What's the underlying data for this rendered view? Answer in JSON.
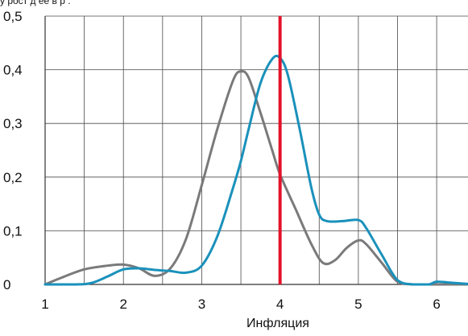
{
  "page": {
    "top_caption_fragment": "у рост д    ее в р      ."
  },
  "chart_data": {
    "type": "line",
    "title": "",
    "xlabel": "Инфляция",
    "ylabel": "",
    "xlim": [
      1,
      6.4
    ],
    "ylim": [
      0,
      0.5
    ],
    "x_ticks": [
      1,
      2,
      3,
      4,
      5,
      6
    ],
    "x_tick_labels": [
      "1",
      "2",
      "3",
      "4",
      "5",
      "6"
    ],
    "y_ticks": [
      0,
      0.1,
      0.2,
      0.3,
      0.4,
      0.5
    ],
    "y_tick_labels": [
      "0",
      "0,1",
      "0,2",
      "0,3",
      "0,4",
      "0,5"
    ],
    "grid": true,
    "legend": "none",
    "reference_line": {
      "x": 4.0,
      "color": "#e3122c"
    },
    "series": [
      {
        "color": "#7a7a7c",
        "x": [
          1.0,
          1.2,
          1.5,
          1.8,
          2.0,
          2.2,
          2.4,
          2.6,
          2.8,
          3.0,
          3.2,
          3.4,
          3.5,
          3.6,
          3.75,
          3.9,
          4.0,
          4.2,
          4.4,
          4.55,
          4.7,
          4.85,
          5.0,
          5.1,
          5.3,
          5.5,
          5.7,
          6.0,
          6.4
        ],
        "values": [
          0.0,
          0.012,
          0.028,
          0.035,
          0.037,
          0.03,
          0.016,
          0.03,
          0.085,
          0.185,
          0.29,
          0.38,
          0.397,
          0.385,
          0.32,
          0.25,
          0.205,
          0.14,
          0.075,
          0.04,
          0.045,
          0.068,
          0.082,
          0.075,
          0.04,
          0.005,
          0.0,
          0.0,
          0.0
        ]
      },
      {
        "color": "#1a91bb",
        "x": [
          1.0,
          1.4,
          1.6,
          1.8,
          2.0,
          2.2,
          2.4,
          2.6,
          2.8,
          3.0,
          3.2,
          3.4,
          3.5,
          3.6,
          3.75,
          3.9,
          4.0,
          4.1,
          4.25,
          4.4,
          4.5,
          4.6,
          4.8,
          5.0,
          5.1,
          5.3,
          5.5,
          5.7,
          5.9,
          6.0,
          6.2,
          6.4
        ],
        "values": [
          0.0,
          0.0,
          0.003,
          0.015,
          0.028,
          0.03,
          0.027,
          0.025,
          0.022,
          0.035,
          0.09,
          0.18,
          0.23,
          0.29,
          0.375,
          0.42,
          0.422,
          0.39,
          0.29,
          0.18,
          0.13,
          0.118,
          0.118,
          0.12,
          0.105,
          0.055,
          0.008,
          0.0,
          0.0,
          0.005,
          0.003,
          0.001
        ]
      }
    ]
  }
}
